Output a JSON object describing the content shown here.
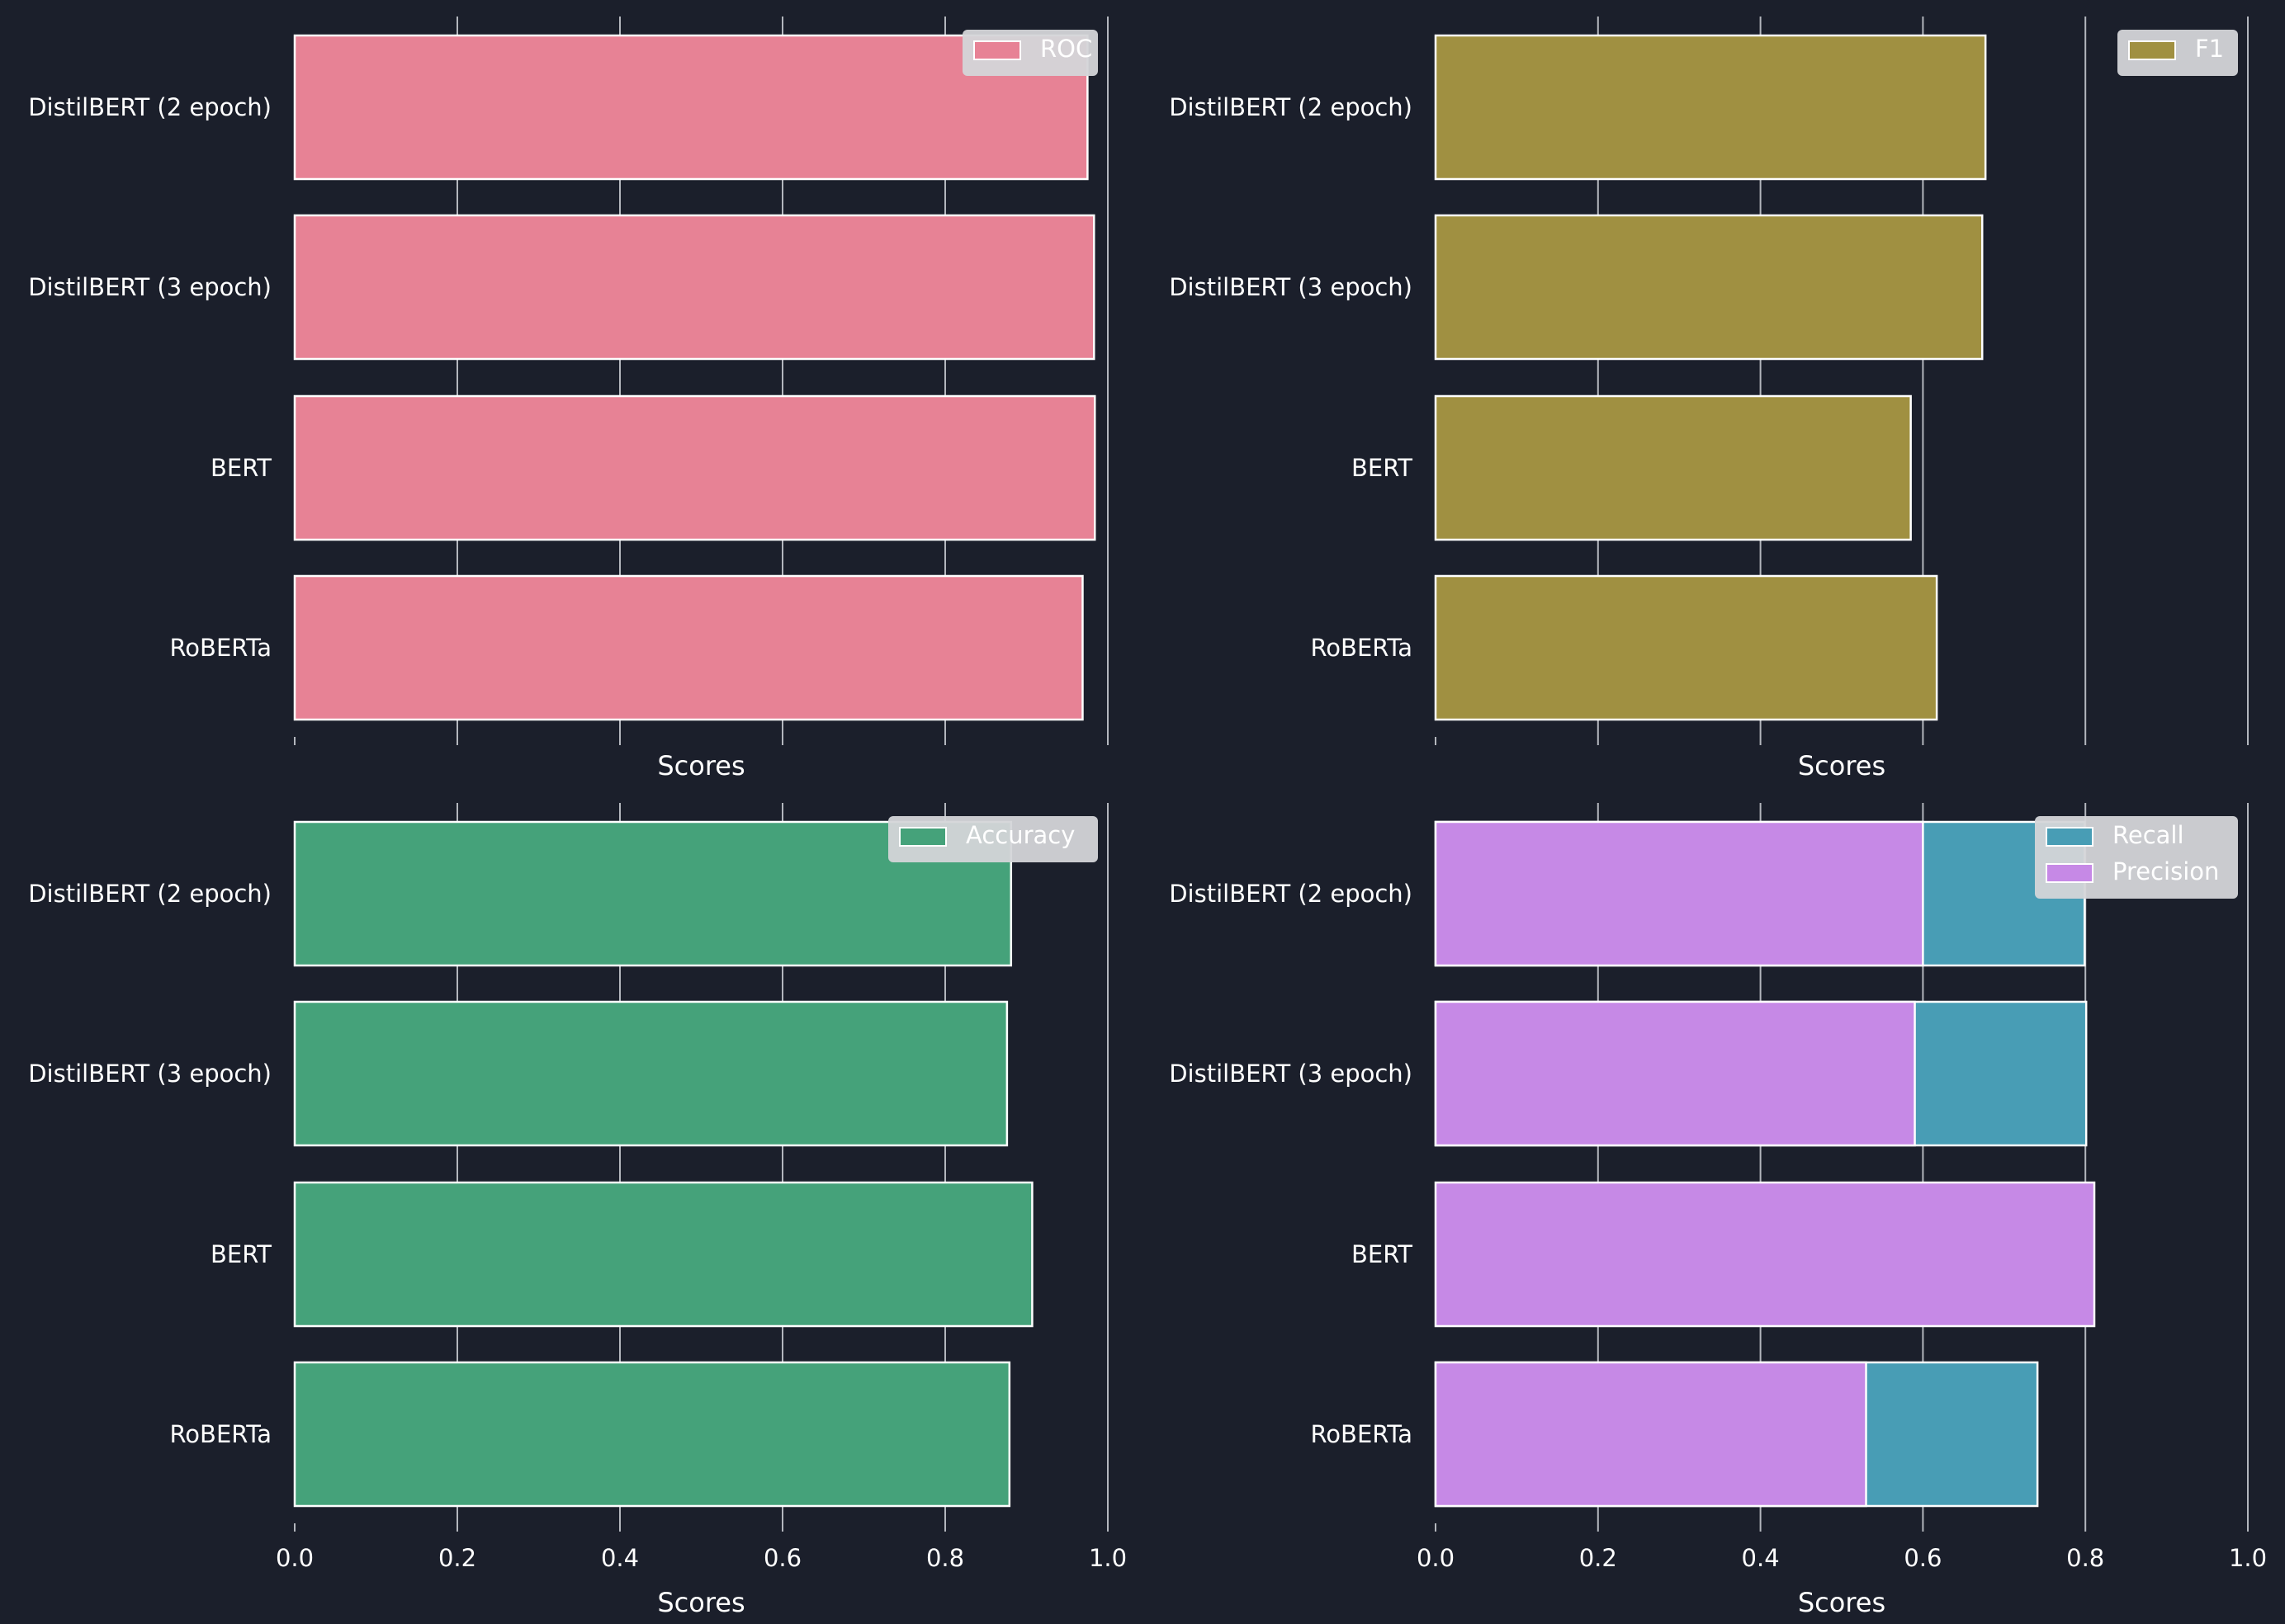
{
  "colors": {
    "background": "#1b1f2b",
    "text": "#ffffff",
    "grid": "#b3b6bd",
    "bar_edge": "#ffffff",
    "legend_bg": "#d4d5d8"
  },
  "chart_data": [
    {
      "type": "bar",
      "orientation": "horizontal",
      "categories": [
        "DistilBERT (2 epoch)",
        "DistilBERT (3 epoch)",
        "BERT",
        "RoBERTa"
      ],
      "series": [
        {
          "name": "ROC",
          "color": "#e78295",
          "values": [
            0.975,
            0.983,
            0.984,
            0.969
          ]
        }
      ],
      "xlabel": "Scores",
      "xlim": [
        0,
        1.0
      ],
      "show_xticklabels": false,
      "xticks": [
        "0.0",
        "0.2",
        "0.4",
        "0.6",
        "0.8",
        "1.0"
      ],
      "grid": "vertical",
      "legend": "upper right"
    },
    {
      "type": "bar",
      "orientation": "horizontal",
      "categories": [
        "DistilBERT (2 epoch)",
        "DistilBERT (3 epoch)",
        "BERT",
        "RoBERTa"
      ],
      "series": [
        {
          "name": "F1",
          "color": "#a09041",
          "values": [
            0.677,
            0.673,
            0.585,
            0.617
          ]
        }
      ],
      "xlabel": "Scores",
      "xlim": [
        0,
        1.0
      ],
      "show_xticklabels": false,
      "xticks": [
        "0.0",
        "0.2",
        "0.4",
        "0.6",
        "0.8",
        "1.0"
      ],
      "grid": "vertical",
      "legend": "upper right"
    },
    {
      "type": "bar",
      "orientation": "horizontal",
      "categories": [
        "DistilBERT (2 epoch)",
        "DistilBERT (3 epoch)",
        "BERT",
        "RoBERTa"
      ],
      "series": [
        {
          "name": "Accuracy",
          "color": "#45a27a",
          "values": [
            0.881,
            0.876,
            0.907,
            0.879
          ]
        }
      ],
      "xlabel": "Scores",
      "xlim": [
        0,
        1.0
      ],
      "show_xticklabels": true,
      "xticks": [
        "0.0",
        "0.2",
        "0.4",
        "0.6",
        "0.8",
        "1.0"
      ],
      "grid": "vertical",
      "legend": "upper right"
    },
    {
      "type": "bar",
      "orientation": "horizontal",
      "overlay": true,
      "categories": [
        "DistilBERT (2 epoch)",
        "DistilBERT (3 epoch)",
        "BERT",
        "RoBERTa"
      ],
      "series": [
        {
          "name": "Recall",
          "color": "#489db5",
          "values": [
            0.799,
            0.801,
            0.0,
            0.741
          ]
        },
        {
          "name": "Precision",
          "color": "#c689e6",
          "values": [
            0.6,
            0.59,
            0.811,
            0.53
          ]
        }
      ],
      "xlabel": "Scores",
      "xlim": [
        0,
        1.0
      ],
      "show_xticklabels": true,
      "xticks": [
        "0.0",
        "0.2",
        "0.4",
        "0.6",
        "0.8",
        "1.0"
      ],
      "grid": "vertical",
      "legend": "upper right"
    }
  ]
}
